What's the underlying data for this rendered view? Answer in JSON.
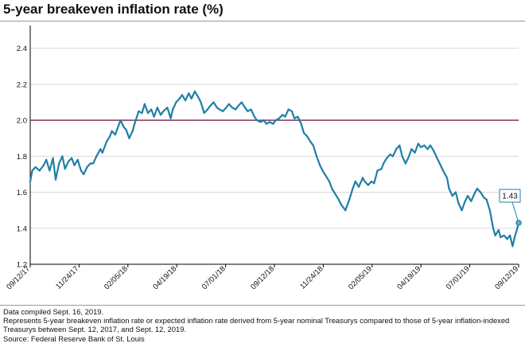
{
  "title": "5-year breakeven inflation rate (%)",
  "notes": [
    "Data compiled Sept. 16, 2019.",
    "Represents 5-year breakeven inflation rate or expected inflation rate derived from 5-year nominal Treasurys compared to those of 5-year inflation-indexed Treasurys between Sept. 12, 2017, and Sept. 12, 2019.",
    "Source: Federal Reserve Bank of St. Louis"
  ],
  "colors": {
    "line": "#1f7fa6",
    "reference": "#7a1f4f",
    "grid": "#d9d9d9",
    "axis": "#000000"
  },
  "chart_data": {
    "type": "line",
    "title": "5-year breakeven inflation rate (%)",
    "xlabel": "",
    "ylabel": "",
    "x_tick_labels": [
      "09/12/17",
      "11/24/17",
      "02/05/18",
      "04/19/18",
      "07/01/18",
      "09/12/18",
      "11/24/18",
      "02/05/19",
      "04/19/19",
      "07/01/19",
      "09/12/19"
    ],
    "y_ticks": [
      1.2,
      1.4,
      1.6,
      1.8,
      2.0,
      2.2,
      2.4
    ],
    "ylim": [
      1.2,
      2.5
    ],
    "grid": "horizontal",
    "reference_line": 2.0,
    "annotation": {
      "label": "1.43",
      "x": "2019-09-12",
      "y": 1.43
    },
    "series": [
      {
        "points": [
          [
            "2017-09-12",
            1.66
          ],
          [
            "2017-09-15",
            1.72
          ],
          [
            "2017-09-20",
            1.74
          ],
          [
            "2017-09-26",
            1.72
          ],
          [
            "2017-10-02",
            1.75
          ],
          [
            "2017-10-06",
            1.78
          ],
          [
            "2017-10-11",
            1.72
          ],
          [
            "2017-10-16",
            1.79
          ],
          [
            "2017-10-20",
            1.67
          ],
          [
            "2017-10-25",
            1.76
          ],
          [
            "2017-10-30",
            1.8
          ],
          [
            "2017-11-03",
            1.73
          ],
          [
            "2017-11-08",
            1.77
          ],
          [
            "2017-11-13",
            1.79
          ],
          [
            "2017-11-17",
            1.75
          ],
          [
            "2017-11-22",
            1.78
          ],
          [
            "2017-11-27",
            1.72
          ],
          [
            "2017-12-01",
            1.7
          ],
          [
            "2017-12-06",
            1.74
          ],
          [
            "2017-12-11",
            1.76
          ],
          [
            "2017-12-15",
            1.76
          ],
          [
            "2017-12-20",
            1.8
          ],
          [
            "2017-12-26",
            1.84
          ],
          [
            "2017-12-29",
            1.82
          ],
          [
            "2018-01-04",
            1.88
          ],
          [
            "2018-01-09",
            1.91
          ],
          [
            "2018-01-12",
            1.94
          ],
          [
            "2018-01-17",
            1.92
          ],
          [
            "2018-01-22",
            1.97
          ],
          [
            "2018-01-25",
            2.0
          ],
          [
            "2018-01-30",
            1.96
          ],
          [
            "2018-02-02",
            1.95
          ],
          [
            "2018-02-07",
            1.9
          ],
          [
            "2018-02-12",
            1.94
          ],
          [
            "2018-02-15",
            1.98
          ],
          [
            "2018-02-21",
            2.05
          ],
          [
            "2018-02-26",
            2.04
          ],
          [
            "2018-03-02",
            2.09
          ],
          [
            "2018-03-07",
            2.04
          ],
          [
            "2018-03-12",
            2.06
          ],
          [
            "2018-03-16",
            2.02
          ],
          [
            "2018-03-21",
            2.07
          ],
          [
            "2018-03-26",
            2.03
          ],
          [
            "2018-03-30",
            2.05
          ],
          [
            "2018-04-05",
            2.07
          ],
          [
            "2018-04-10",
            2.01
          ],
          [
            "2018-04-13",
            2.06
          ],
          [
            "2018-04-18",
            2.1
          ],
          [
            "2018-04-23",
            2.12
          ],
          [
            "2018-04-27",
            2.14
          ],
          [
            "2018-05-02",
            2.11
          ],
          [
            "2018-05-07",
            2.15
          ],
          [
            "2018-05-11",
            2.12
          ],
          [
            "2018-05-16",
            2.16
          ],
          [
            "2018-05-21",
            2.13
          ],
          [
            "2018-05-25",
            2.1
          ],
          [
            "2018-05-30",
            2.04
          ],
          [
            "2018-06-04",
            2.06
          ],
          [
            "2018-06-08",
            2.08
          ],
          [
            "2018-06-13",
            2.1
          ],
          [
            "2018-06-18",
            2.07
          ],
          [
            "2018-06-22",
            2.06
          ],
          [
            "2018-06-27",
            2.05
          ],
          [
            "2018-07-02",
            2.07
          ],
          [
            "2018-07-06",
            2.09
          ],
          [
            "2018-07-11",
            2.07
          ],
          [
            "2018-07-16",
            2.06
          ],
          [
            "2018-07-20",
            2.08
          ],
          [
            "2018-07-25",
            2.1
          ],
          [
            "2018-07-30",
            2.07
          ],
          [
            "2018-08-03",
            2.05
          ],
          [
            "2018-08-08",
            2.06
          ],
          [
            "2018-08-13",
            2.02
          ],
          [
            "2018-08-17",
            2.0
          ],
          [
            "2018-08-22",
            1.99
          ],
          [
            "2018-08-27",
            2.0
          ],
          [
            "2018-08-31",
            1.98
          ],
          [
            "2018-09-05",
            1.99
          ],
          [
            "2018-09-10",
            1.98
          ],
          [
            "2018-09-14",
            2.0
          ],
          [
            "2018-09-19",
            2.01
          ],
          [
            "2018-09-24",
            2.03
          ],
          [
            "2018-09-28",
            2.02
          ],
          [
            "2018-10-03",
            2.06
          ],
          [
            "2018-10-08",
            2.05
          ],
          [
            "2018-10-12",
            2.01
          ],
          [
            "2018-10-17",
            2.02
          ],
          [
            "2018-10-22",
            1.98
          ],
          [
            "2018-10-26",
            1.93
          ],
          [
            "2018-10-31",
            1.91
          ],
          [
            "2018-11-05",
            1.88
          ],
          [
            "2018-11-09",
            1.86
          ],
          [
            "2018-11-14",
            1.8
          ],
          [
            "2018-11-19",
            1.75
          ],
          [
            "2018-11-23",
            1.72
          ],
          [
            "2018-11-28",
            1.69
          ],
          [
            "2018-12-03",
            1.66
          ],
          [
            "2018-12-07",
            1.62
          ],
          [
            "2018-12-12",
            1.59
          ],
          [
            "2018-12-17",
            1.56
          ],
          [
            "2018-12-21",
            1.53
          ],
          [
            "2018-12-27",
            1.5
          ],
          [
            "2019-01-02",
            1.56
          ],
          [
            "2019-01-07",
            1.62
          ],
          [
            "2019-01-11",
            1.66
          ],
          [
            "2019-01-16",
            1.63
          ],
          [
            "2019-01-22",
            1.68
          ],
          [
            "2019-01-25",
            1.66
          ],
          [
            "2019-01-30",
            1.64
          ],
          [
            "2019-02-04",
            1.66
          ],
          [
            "2019-02-08",
            1.65
          ],
          [
            "2019-02-13",
            1.72
          ],
          [
            "2019-02-19",
            1.73
          ],
          [
            "2019-02-22",
            1.76
          ],
          [
            "2019-02-27",
            1.79
          ],
          [
            "2019-03-04",
            1.81
          ],
          [
            "2019-03-08",
            1.8
          ],
          [
            "2019-03-13",
            1.84
          ],
          [
            "2019-03-18",
            1.86
          ],
          [
            "2019-03-22",
            1.8
          ],
          [
            "2019-03-27",
            1.76
          ],
          [
            "2019-04-01",
            1.8
          ],
          [
            "2019-04-05",
            1.84
          ],
          [
            "2019-04-10",
            1.82
          ],
          [
            "2019-04-15",
            1.87
          ],
          [
            "2019-04-19",
            1.85
          ],
          [
            "2019-04-24",
            1.86
          ],
          [
            "2019-04-29",
            1.84
          ],
          [
            "2019-05-03",
            1.86
          ],
          [
            "2019-05-08",
            1.83
          ],
          [
            "2019-05-13",
            1.79
          ],
          [
            "2019-05-17",
            1.76
          ],
          [
            "2019-05-22",
            1.72
          ],
          [
            "2019-05-28",
            1.68
          ],
          [
            "2019-05-31",
            1.62
          ],
          [
            "2019-06-05",
            1.58
          ],
          [
            "2019-06-10",
            1.6
          ],
          [
            "2019-06-14",
            1.54
          ],
          [
            "2019-06-19",
            1.5
          ],
          [
            "2019-06-24",
            1.55
          ],
          [
            "2019-06-28",
            1.58
          ],
          [
            "2019-07-03",
            1.55
          ],
          [
            "2019-07-09",
            1.6
          ],
          [
            "2019-07-12",
            1.62
          ],
          [
            "2019-07-17",
            1.6
          ],
          [
            "2019-07-22",
            1.57
          ],
          [
            "2019-07-26",
            1.56
          ],
          [
            "2019-07-31",
            1.5
          ],
          [
            "2019-08-05",
            1.4
          ],
          [
            "2019-08-08",
            1.36
          ],
          [
            "2019-08-13",
            1.39
          ],
          [
            "2019-08-16",
            1.35
          ],
          [
            "2019-08-21",
            1.36
          ],
          [
            "2019-08-26",
            1.34
          ],
          [
            "2019-08-30",
            1.36
          ],
          [
            "2019-09-03",
            1.3
          ],
          [
            "2019-09-06",
            1.35
          ],
          [
            "2019-09-10",
            1.4
          ],
          [
            "2019-09-12",
            1.43
          ]
        ]
      }
    ]
  }
}
